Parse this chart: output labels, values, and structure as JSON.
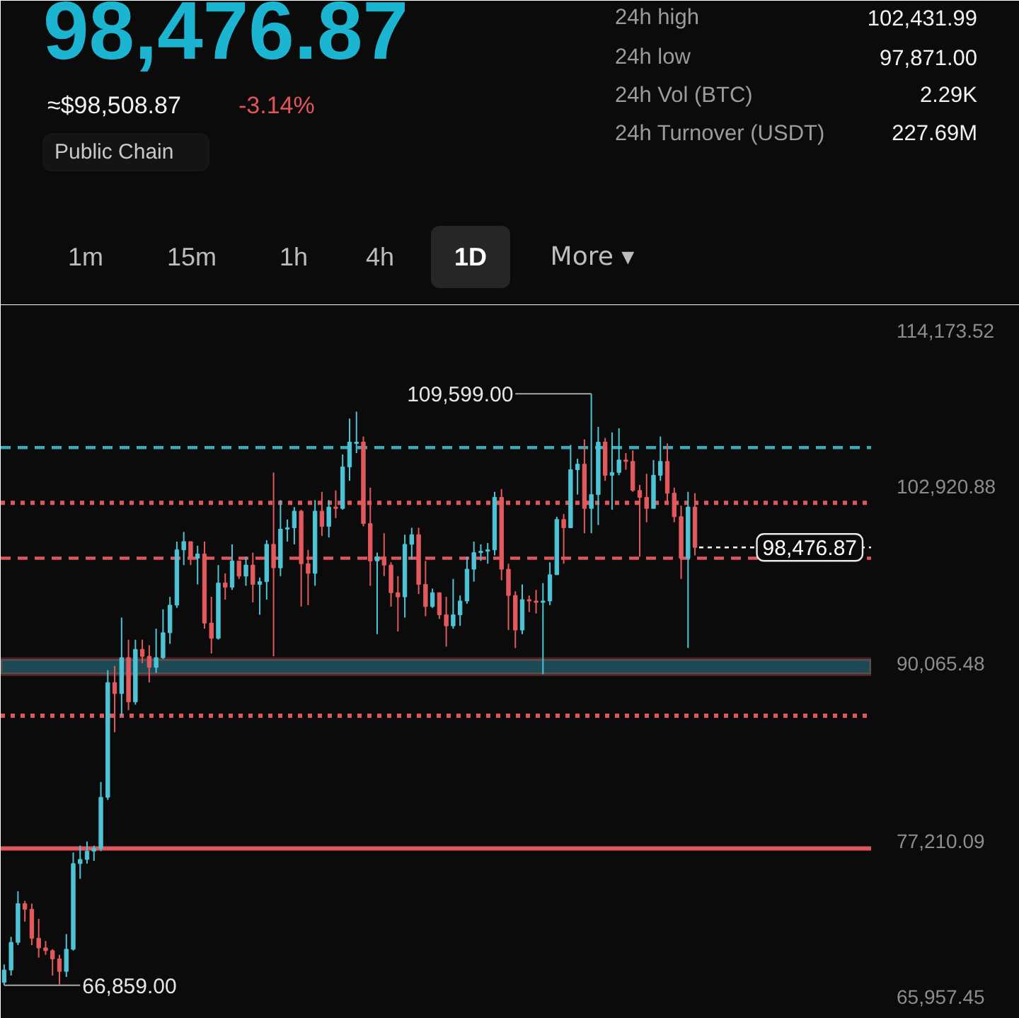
{
  "chart_data": {
    "type": "candlestick",
    "title": "98,476.87",
    "annotations": [
      "≈$98,508.87",
      "-3.14%",
      "Public Chain",
      "24h high",
      "102,431.99",
      "24h low",
      "97,871.00",
      "24h Vol (BTC)",
      "2.29K",
      "24h Turnover (USDT)",
      "227.69M",
      "1m",
      "15m",
      "1h",
      "4h",
      "1D",
      "More ▾",
      "109,599.00",
      "66,859.00"
    ],
    "categories": [
      null,
      null,
      null,
      null,
      null,
      null,
      null,
      null,
      null,
      null,
      null,
      null,
      null,
      null,
      null,
      null,
      null,
      null,
      null,
      null,
      null,
      null,
      null,
      null,
      null,
      null,
      null,
      null,
      null,
      null,
      null,
      null,
      null,
      null,
      null,
      null,
      null,
      null,
      null,
      null,
      null,
      null,
      null,
      null,
      null,
      null,
      null,
      null,
      null,
      null,
      null,
      null,
      null,
      null,
      null,
      null,
      null,
      null,
      null,
      null,
      null,
      null,
      null,
      null,
      null,
      null,
      null,
      null,
      null,
      null,
      null,
      null,
      null,
      null,
      null,
      null,
      null,
      null,
      null,
      null,
      null,
      null,
      null,
      null,
      null,
      null,
      null,
      null,
      null,
      null,
      null,
      null,
      null,
      null,
      null,
      null,
      null,
      null,
      null,
      null,
      null,
      null,
      null,
      null,
      null,
      null,
      null,
      null,
      null,
      null,
      null,
      null,
      null,
      null,
      null,
      null,
      null,
      null,
      null,
      null,
      null,
      null,
      null,
      null,
      null,
      null
    ],
    "ohlc": [
      [
        67000,
        68300,
        66800,
        67900
      ],
      [
        67900,
        70300,
        67500,
        69900
      ],
      [
        69900,
        73600,
        69700,
        72700
      ],
      [
        72700,
        72900,
        71400,
        72300
      ],
      [
        72300,
        72700,
        69700,
        70200
      ],
      [
        70200,
        71600,
        68800,
        69500
      ],
      [
        69500,
        70000,
        69000,
        69300
      ],
      [
        69300,
        69400,
        67500,
        68700
      ],
      [
        68700,
        69000,
        66859,
        67800
      ],
      [
        67800,
        70500,
        67400,
        69400
      ],
      [
        69400,
        76400,
        69300,
        75600
      ],
      [
        75600,
        76900,
        74500,
        75900
      ],
      [
        75900,
        77200,
        75600,
        76500
      ],
      [
        76500,
        76900,
        75800,
        76700
      ],
      [
        76700,
        81500,
        76500,
        80400
      ],
      [
        80400,
        89600,
        80200,
        88700
      ],
      [
        88700,
        89900,
        85100,
        87900
      ],
      [
        87900,
        93400,
        86300,
        90500
      ],
      [
        90500,
        91800,
        86700,
        87300
      ],
      [
        87300,
        91800,
        87100,
        91100
      ],
      [
        91100,
        91800,
        90100,
        90600
      ],
      [
        90600,
        91400,
        88700,
        89800
      ],
      [
        89800,
        92600,
        89400,
        90500
      ],
      [
        90500,
        94000,
        90400,
        92300
      ],
      [
        92300,
        94900,
        91500,
        94300
      ],
      [
        94300,
        98900,
        94100,
        98300
      ],
      [
        98300,
        99600,
        97200,
        98900
      ],
      [
        98900,
        98900,
        97200,
        97700
      ],
      [
        97700,
        98600,
        95800,
        98000
      ],
      [
        98000,
        98900,
        92600,
        93000
      ],
      [
        93000,
        94900,
        90800,
        91900
      ],
      [
        91900,
        97200,
        91800,
        95900
      ],
      [
        95900,
        96600,
        94700,
        95600
      ],
      [
        95600,
        98700,
        95400,
        97500
      ],
      [
        97500,
        97500,
        96200,
        96400
      ],
      [
        96400,
        97800,
        95700,
        97200
      ],
      [
        97200,
        98100,
        94500,
        95800
      ],
      [
        95800,
        96300,
        93600,
        96000
      ],
      [
        96000,
        99000,
        94700,
        98700
      ],
      [
        98700,
        103900,
        90600,
        97000
      ],
      [
        97000,
        101900,
        96400,
        99800
      ],
      [
        99800,
        100500,
        98900,
        99900
      ],
      [
        99900,
        101400,
        98700,
        101100
      ],
      [
        101100,
        101200,
        94200,
        97300
      ],
      [
        97300,
        98300,
        94300,
        96600
      ],
      [
        96600,
        101900,
        95700,
        101100
      ],
      [
        101100,
        102500,
        99300,
        100000
      ],
      [
        100000,
        101900,
        99200,
        101400
      ],
      [
        101400,
        102600,
        100600,
        101300
      ],
      [
        101300,
        105200,
        101200,
        104300
      ],
      [
        104300,
        107800,
        103300,
        106100
      ],
      [
        106000,
        108300,
        105300,
        106100
      ],
      [
        106100,
        106500,
        100000,
        100200
      ],
      [
        100200,
        102800,
        95700,
        97500
      ],
      [
        97500,
        98100,
        92200,
        97800
      ],
      [
        97800,
        99500,
        96400,
        97200
      ],
      [
        97200,
        97400,
        94200,
        95200
      ],
      [
        95200,
        96400,
        92400,
        94900
      ],
      [
        94900,
        99400,
        93400,
        98700
      ],
      [
        98700,
        99900,
        97600,
        99400
      ],
      [
        99400,
        99900,
        95100,
        95800
      ],
      [
        95800,
        97500,
        93500,
        94200
      ],
      [
        94200,
        95500,
        94100,
        95200
      ],
      [
        95200,
        95200,
        93300,
        93600
      ],
      [
        93600,
        94900,
        91300,
        92800
      ],
      [
        92800,
        96200,
        92600,
        93600
      ],
      [
        93600,
        95000,
        92800,
        94600
      ],
      [
        94600,
        97800,
        94400,
        96900
      ],
      [
        96900,
        98900,
        96000,
        98100
      ],
      [
        98100,
        98700,
        97500,
        98200
      ],
      [
        98200,
        98800,
        97300,
        98300
      ],
      [
        98300,
        102500,
        97900,
        102100
      ],
      [
        102100,
        102700,
        96100,
        96900
      ],
      [
        96900,
        97300,
        92500,
        95000
      ],
      [
        95000,
        95300,
        91200,
        92500
      ],
      [
        92500,
        95800,
        92200,
        94700
      ],
      [
        94700,
        95000,
        93800,
        94600
      ],
      [
        94600,
        95400,
        93700,
        94500
      ],
      [
        94500,
        95900,
        89300,
        94600
      ],
      [
        94600,
        97400,
        94300,
        96500
      ],
      [
        96500,
        100700,
        96500,
        100500
      ],
      [
        100500,
        100900,
        97300,
        99900
      ],
      [
        99900,
        105900,
        99900,
        104100
      ],
      [
        104100,
        104900,
        102300,
        104500
      ],
      [
        104500,
        106300,
        99500,
        101300
      ],
      [
        101300,
        109599,
        99500,
        102300
      ],
      [
        102300,
        107200,
        100100,
        106100
      ],
      [
        106100,
        106400,
        103300,
        103700
      ],
      [
        103700,
        106800,
        101200,
        103900
      ],
      [
        103900,
        107100,
        103700,
        104800
      ],
      [
        104800,
        105300,
        104100,
        104700
      ],
      [
        104700,
        105500,
        102500,
        102600
      ],
      [
        102600,
        103000,
        97800,
        102100
      ],
      [
        102100,
        103800,
        100300,
        101300
      ],
      [
        101300,
        104800,
        101300,
        103700
      ],
      [
        103700,
        106500,
        103300,
        104700
      ],
      [
        104700,
        106000,
        101600,
        102400
      ],
      [
        102400,
        102800,
        100300,
        100700
      ],
      [
        100700,
        101500,
        96200,
        97700
      ],
      [
        97700,
        102500,
        91200,
        101400
      ],
      [
        101400,
        102400,
        97900,
        98476.87
      ],
      null,
      null,
      null,
      null,
      null,
      null,
      null,
      null,
      null,
      null,
      null,
      null,
      null,
      null,
      null,
      null,
      null,
      null,
      null,
      null,
      null,
      null,
      null,
      null,
      null
    ],
    "colors": [
      "#4ec3d5",
      "#4ec3d5",
      "#4ec3d5",
      "#e25a5e",
      "#e25a5e",
      "#e25a5e",
      "#e25a5e",
      "#e25a5e",
      "#e25a5e",
      "#4ec3d5",
      "#4ec3d5",
      "#4ec3d5",
      "#4ec3d5",
      "#4ec3d5",
      "#4ec3d5",
      "#4ec3d5",
      "#e25a5e",
      "#4ec3d5",
      "#e25a5e",
      "#4ec3d5",
      "#e25a5e",
      "#e25a5e",
      "#4ec3d5",
      "#4ec3d5",
      "#4ec3d5",
      "#4ec3d5",
      "#4ec3d5",
      "#e25a5e",
      "#4ec3d5",
      "#e25a5e",
      "#e25a5e",
      "#4ec3d5",
      "#e25a5e",
      "#4ec3d5",
      "#e25a5e",
      "#4ec3d5",
      "#e25a5e",
      "#4ec3d5",
      "#4ec3d5",
      "#e25a5e",
      "#4ec3d5",
      "#4ec3d5",
      "#4ec3d5",
      "#e25a5e",
      "#e25a5e",
      "#4ec3d5",
      "#e25a5e",
      "#4ec3d5",
      "#e25a5e",
      "#4ec3d5",
      "#4ec3d5",
      "#4ec3d5",
      "#e25a5e",
      "#e25a5e",
      "#4ec3d5",
      "#e25a5e",
      "#e25a5e",
      "#e25a5e",
      "#4ec3d5",
      "#4ec3d5",
      "#e25a5e",
      "#e25a5e",
      "#4ec3d5",
      "#e25a5e",
      "#e25a5e",
      "#4ec3d5",
      "#4ec3d5",
      "#4ec3d5",
      "#4ec3d5",
      "#4ec3d5",
      "#4ec3d5",
      "#4ec3d5",
      "#e25a5e",
      "#e25a5e",
      "#e25a5e",
      "#4ec3d5",
      "#e25a5e",
      "#e25a5e",
      "#4ec3d5",
      "#4ec3d5",
      "#4ec3d5",
      "#e25a5e",
      "#4ec3d5",
      "#4ec3d5",
      "#e25a5e",
      "#4ec3d5",
      "#4ec3d5",
      "#e25a5e",
      "#4ec3d5",
      "#4ec3d5",
      "#e25a5e",
      "#e25a5e",
      "#e25a5e",
      "#e25a5e",
      "#4ec3d5",
      "#4ec3d5",
      "#e25a5e",
      "#e25a5e",
      "#e25a5e",
      "#4ec3d5",
      "#e25a5e",
      null,
      null,
      null,
      null,
      null,
      null,
      null,
      null,
      null,
      null,
      null,
      null,
      null,
      null,
      null,
      null,
      null,
      null,
      null,
      null,
      null,
      null,
      null,
      null,
      null
    ],
    "ylim": [
      65400,
      115600
    ],
    "yticks": [
      {
        "value": 114173.52,
        "label": "114,173.52"
      },
      {
        "value": 102920.88,
        "label": "102,920.88"
      },
      {
        "value": 90065.48,
        "label": "90,065.48"
      },
      {
        "value": 77210.09,
        "label": "77,210.09"
      },
      {
        "value": 65957.45,
        "label": "65,957.45"
      }
    ],
    "tick_labels": "y",
    "ref_lines": [
      {
        "axis": "y",
        "value": 105700,
        "color": "#3aa9ba",
        "line_style": "dashed"
      },
      {
        "axis": "y",
        "value": 101700,
        "color": "#e0575b",
        "line_style": "dotted"
      },
      {
        "axis": "y",
        "value": 97700,
        "color": "#e0575b",
        "line_style": "dashed"
      },
      {
        "axis": "y",
        "value": 86300,
        "color": "#e0575b",
        "line_style": "dotted"
      },
      {
        "axis": "y",
        "value": 76700,
        "color": "#e0575b",
        "line_style": "solid"
      },
      {
        "axis": "y",
        "value": 98476.87,
        "label": "98,476.87",
        "color": "#ffffff",
        "line_style": "dashed"
      }
    ],
    "bands": [
      {
        "axis": "y",
        "from": 89300,
        "to": 90400,
        "color": "#1d4a52"
      }
    ]
  }
}
